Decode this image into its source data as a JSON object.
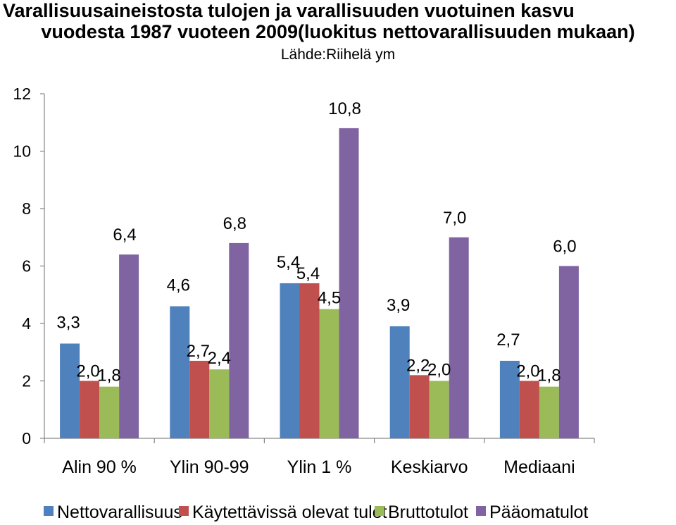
{
  "chart_data": {
    "type": "bar",
    "title_line1": "Varallisuusaineistosta tulojen ja varallisuuden vuotuinen kasvu",
    "title_line2": "vuodesta 1987 vuoteen 2009(luokitus nettovarallisuuden mukaan)",
    "subtitle": "Lähde:Riihelä ym",
    "categories": [
      "Alin 90 %",
      "Ylin 90-99",
      "Ylin 1 %",
      "Keskiarvo",
      "Mediaani"
    ],
    "series": [
      {
        "name": "Nettovarallisuus",
        "color": "#4F81BD",
        "values": [
          3.3,
          4.6,
          5.4,
          3.9,
          2.7
        ],
        "labels": [
          "3,3",
          "4,6",
          "5,4",
          "3,9",
          "2,7"
        ]
      },
      {
        "name": "Käytettävissä olevat tulot",
        "color": "#C0504D",
        "values": [
          2.0,
          2.7,
          5.4,
          2.2,
          2.0
        ],
        "labels": [
          "2,0",
          "2,7",
          "5,4",
          "2,2",
          "2,0"
        ]
      },
      {
        "name": "Bruttotulot",
        "color": "#9BBB59",
        "values": [
          1.8,
          2.4,
          4.5,
          2.0,
          1.8
        ],
        "labels": [
          "1,8",
          "2,4",
          "4,5",
          "2,0",
          "1,8"
        ]
      },
      {
        "name": "Pääomatulot",
        "color": "#8064A2",
        "values": [
          6.4,
          6.8,
          10.8,
          7.0,
          6.0
        ],
        "labels": [
          "6,4",
          "6,8",
          "10,8",
          "7,0",
          "6,0"
        ]
      }
    ],
    "ylim": [
      0,
      12
    ],
    "yticks": [
      0,
      2,
      4,
      6,
      8,
      10,
      12
    ],
    "grid": false,
    "legend_position": "bottom"
  }
}
